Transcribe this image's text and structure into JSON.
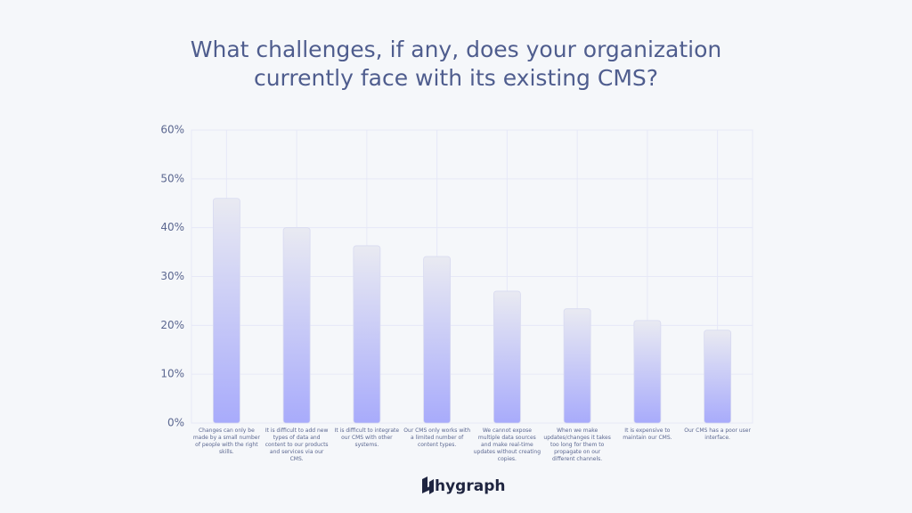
{
  "chart_data": {
    "type": "bar",
    "title": "What challenges, if any, does your organization currently face with its existing CMS?",
    "categories": [
      "Changes can only be made by a small number of people with the right skills.",
      "It is difficult to add new types of data and content to our products and services via our CMS.",
      "It is difficult to integrate our CMS with other systems.",
      "Our CMS only works with a limited number of content types.",
      "We cannot expose multiple data sources and make real-time updates without creating copies.",
      "When we make updates/changes it takes too long for them to propagate on our different channels.",
      "It is expensive to maintain our CMS.",
      "Our CMS has a poor user interface."
    ],
    "values": [
      46,
      40,
      36.3,
      34.1,
      27,
      23.4,
      21,
      19
    ],
    "gradient": [
      "#e9eaf2",
      "#a8abfb"
    ],
    "ylim": [
      0,
      60
    ],
    "yticks": [
      {
        "value": 0,
        "label": "0%"
      },
      {
        "value": 10,
        "label": "10%"
      },
      {
        "value": 20,
        "label": "20%"
      },
      {
        "value": 30,
        "label": "30%"
      },
      {
        "value": 40,
        "label": "40%"
      },
      {
        "value": 50,
        "label": "50%"
      },
      {
        "value": 60,
        "label": "60%"
      }
    ],
    "grid": true,
    "brand": "hygraph"
  }
}
